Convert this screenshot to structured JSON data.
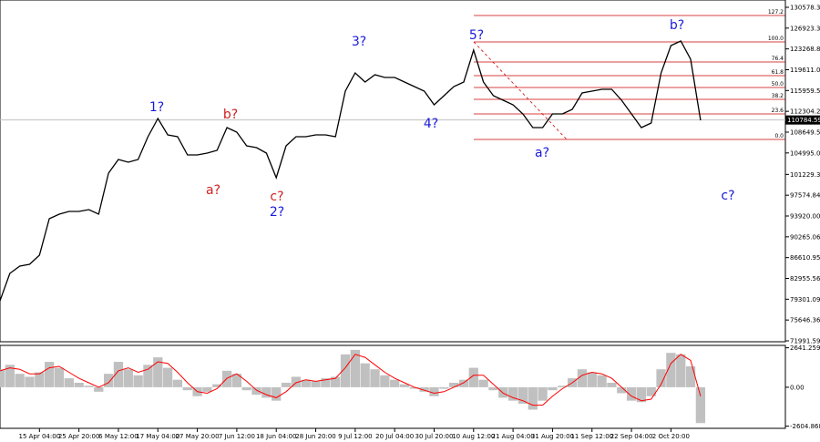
{
  "chart_data": [
    {
      "type": "line",
      "color": "#000000",
      "values": [
        79033,
        83835,
        85116,
        85436,
        87037,
        93440,
        94240,
        94720,
        94720,
        95041,
        94240,
        101444,
        103845,
        103365,
        103845,
        107847,
        111049,
        108167,
        107847,
        104645,
        104645,
        104966,
        105446,
        109448,
        108647,
        106246,
        105926,
        104966,
        100643,
        106246,
        107847,
        107847,
        108167,
        108167,
        107847,
        115851,
        119053,
        117452,
        118732,
        118252,
        118252,
        117452,
        116651,
        115851,
        113450,
        115051,
        116651,
        117452,
        123055,
        117452,
        115051,
        114250,
        113450,
        111849,
        109448,
        109448,
        111849,
        111849,
        112649,
        115531,
        115851,
        116171,
        116171,
        114250,
        111849,
        109448,
        110248,
        119053,
        123855,
        124655,
        121454,
        110728
      ],
      "ylim": [
        71830,
        131860
      ],
      "xlim": [
        0,
        79.6
      ],
      "yticks": [
        130578.34,
        126923.36,
        123268.84,
        119611.06,
        115959.54,
        112304.29,
        108649.59,
        {
          "value": 104995.0,
          "label": "104995.00"
        },
        101229.35,
        97574.84,
        {
          "value": 93920.0,
          "label": "93920.00"
        },
        90265.06,
        86610.95,
        82955.56,
        79301.09,
        75646.36,
        71991.59
      ],
      "xticks": [
        {
          "value": 4,
          "label": "15 Apr 04:00"
        },
        {
          "value": 8,
          "label": "25 Apr 20:00"
        },
        {
          "value": 12,
          "label": "6 May 12:00"
        },
        {
          "value": 16,
          "label": "17 May 04:00"
        },
        {
          "value": 20,
          "label": "27 May 20:00"
        },
        {
          "value": 24,
          "label": "7 Jun 12:00"
        },
        {
          "value": 28,
          "label": "18 Jun 04:00"
        },
        {
          "value": 32,
          "label": "28 Jun 20:00"
        },
        {
          "value": 36,
          "label": "9 Jul 12:00"
        },
        {
          "value": 40,
          "label": "20 Jul 04:00"
        },
        {
          "value": 44,
          "label": "30 Jul 20:00"
        },
        {
          "value": 48,
          "label": "10 Aug 12:00"
        },
        {
          "value": 52,
          "label": "21 Aug 04:00"
        },
        {
          "value": 56,
          "label": "31 Aug 20:00"
        },
        {
          "value": 60,
          "label": "11 Sep 12:00"
        },
        {
          "value": 64,
          "label": "22 Sep 04:00"
        },
        {
          "value": 68,
          "label": "2 Oct 20:00"
        }
      ],
      "current_price": 110784.59,
      "fib_color": "#cc0000",
      "fib_levels": [
        {
          "value": 129138,
          "label": "127.2"
        },
        {
          "value": 124495,
          "label": "100.0"
        },
        {
          "value": 120974,
          "label": "76.4"
        },
        {
          "value": 118572,
          "label": "61.8"
        },
        {
          "value": 116491,
          "label": "50.0"
        },
        {
          "value": 114410,
          "label": "38.2"
        },
        {
          "value": 111849,
          "label": "23.6"
        },
        {
          "value": 107367,
          "label": "0.0"
        }
      ],
      "annotations": [
        {
          "text": "1?",
          "color": "#1a1adb"
        },
        {
          "text": "b?",
          "color": "#d02020"
        },
        {
          "text": "a?",
          "color": "#d02020"
        },
        {
          "text": "c?",
          "color": "#d02020"
        },
        {
          "text": "2?",
          "color": "#1a1adb"
        },
        {
          "text": "3?",
          "color": "#1a1adb"
        },
        {
          "text": "4?",
          "color": "#1a1adb"
        },
        {
          "text": "5?",
          "color": "#1a1adb"
        },
        {
          "text": "a?",
          "color": "#1a1adb"
        },
        {
          "text": "b?",
          "color": "#1a1adb"
        },
        {
          "text": "c?",
          "color": "#1a1adb"
        }
      ]
    },
    {
      "type": "bar",
      "color": "#c0c0c0",
      "values": [
        1200,
        1500,
        900,
        700,
        1000,
        1700,
        1300,
        600,
        300,
        100,
        -300,
        900,
        1700,
        1200,
        800,
        1500,
        2000,
        1300,
        500,
        -200,
        -600,
        -300,
        200,
        1100,
        900,
        -200,
        -500,
        -700,
        -900,
        300,
        700,
        500,
        400,
        600,
        700,
        2200,
        2500,
        1600,
        1200,
        800,
        500,
        200,
        -100,
        -300,
        -600,
        -100,
        300,
        500,
        1300,
        500,
        -200,
        -700,
        -900,
        -1100,
        -1500,
        -900,
        -200,
        100,
        600,
        1200,
        1000,
        800,
        300,
        -400,
        -900,
        -1000,
        -600,
        1200,
        2300,
        2200,
        1400,
        -2400
      ],
      "signal": {
        "color": "#ff0000",
        "values": [
          1100,
          1300,
          1200,
          900,
          900,
          1300,
          1400,
          1000,
          600,
          300,
          0,
          300,
          1100,
          1300,
          1000,
          1200,
          1700,
          1600,
          1000,
          300,
          -300,
          -400,
          -100,
          600,
          900,
          400,
          -200,
          -500,
          -700,
          -300,
          300,
          500,
          400,
          500,
          600,
          1300,
          2200,
          2000,
          1500,
          1000,
          600,
          300,
          0,
          -200,
          -400,
          -300,
          0,
          300,
          800,
          800,
          200,
          -400,
          -700,
          -900,
          -1200,
          -1200,
          -600,
          -100,
          300,
          800,
          1000,
          900,
          600,
          0,
          -600,
          -900,
          -800,
          200,
          1600,
          2200,
          1800,
          -600
        ]
      },
      "ylim": [
        -2750,
        2800
      ],
      "yticks": [
        2641.259,
        {
          "value": 0,
          "label": "0.00"
        },
        -2604.868
      ]
    }
  ]
}
